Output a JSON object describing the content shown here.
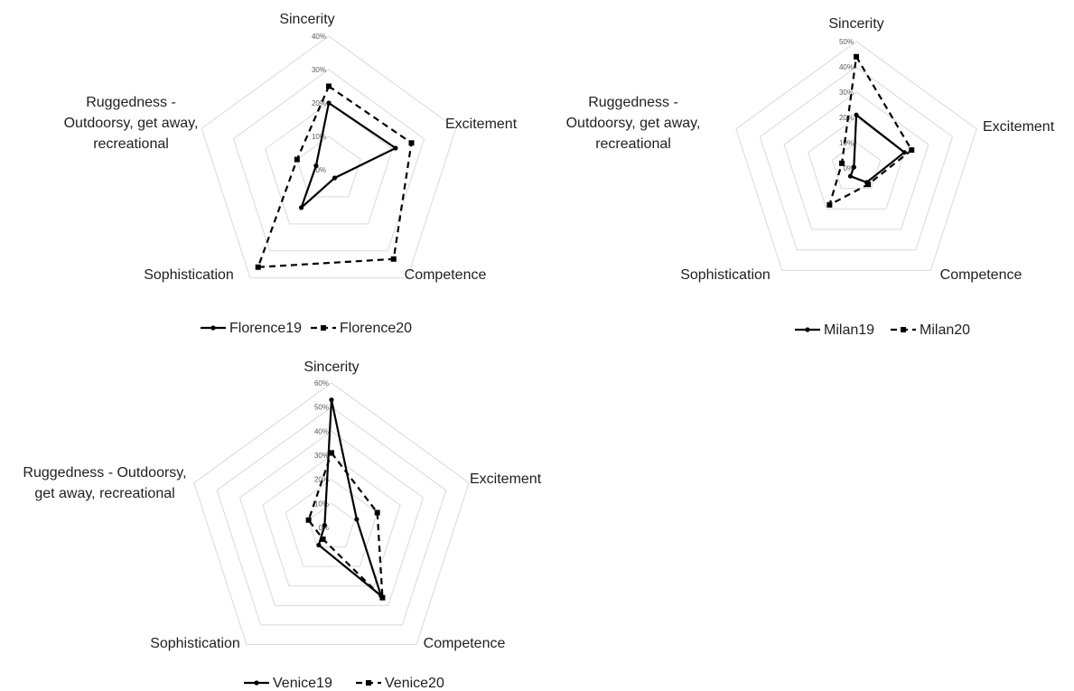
{
  "chart_data": [
    {
      "type": "radar",
      "axes": [
        "Sincerity",
        "Excitement",
        "Competence",
        "Sophistication",
        "Ruggedness - Outdoorsy, get away, recreational"
      ],
      "axis_label_lines": [
        [
          "Sincerity"
        ],
        [
          "Excitement"
        ],
        [
          "Competence"
        ],
        [
          "Sophistication"
        ],
        [
          "Ruggedness -",
          "Outdoorsy, get away,",
          "recreational"
        ]
      ],
      "ticks": [
        "0%",
        "10%",
        "20%",
        "30%",
        "40%"
      ],
      "rmax": 0.4,
      "series": [
        {
          "name": "Florence19",
          "style": "solid",
          "marker": "dot",
          "values": [
            0.2,
            0.21,
            0.03,
            0.14,
            0.04
          ]
        },
        {
          "name": "Florence20",
          "style": "dashed",
          "marker": "square",
          "values": [
            0.25,
            0.26,
            0.33,
            0.36,
            0.1
          ]
        }
      ],
      "legend_position": "bottom",
      "color": "#000000",
      "grid_color": "#d9d9d9"
    },
    {
      "type": "radar",
      "axes": [
        "Sincerity",
        "Excitement",
        "Competence",
        "Sophistication",
        "Ruggedness - Outdoorsy, get away, recreational"
      ],
      "axis_label_lines": [
        [
          "Sincerity"
        ],
        [
          "Excitement"
        ],
        [
          "Competence"
        ],
        [
          "Sophistication"
        ],
        [
          "Ruggedness -",
          "Outdoorsy, get away,",
          "recreational"
        ]
      ],
      "ticks": [
        "0%",
        "10%",
        "20%",
        "30%",
        "40%",
        "50%"
      ],
      "rmax": 0.5,
      "series": [
        {
          "name": "Milan19",
          "style": "solid",
          "marker": "dot",
          "values": [
            0.21,
            0.2,
            0.07,
            0.04,
            0.01
          ]
        },
        {
          "name": "Milan20",
          "style": "dashed",
          "marker": "square",
          "values": [
            0.44,
            0.23,
            0.08,
            0.18,
            0.06
          ]
        }
      ],
      "legend_position": "bottom",
      "color": "#000000",
      "grid_color": "#d9d9d9"
    },
    {
      "type": "radar",
      "axes": [
        "Sincerity",
        "Excitement",
        "Competence",
        "Sophistication",
        "Ruggedness - Outdoorsy, get away, recreational"
      ],
      "axis_label_lines": [
        [
          "Sincerity"
        ],
        [
          "Excitement"
        ],
        [
          "Competence"
        ],
        [
          "Sophistication"
        ],
        [
          "Ruggedness - Outdoorsy,",
          "get away, recreational"
        ]
      ],
      "ticks": [
        "0%",
        "10%",
        "20%",
        "30%",
        "40%",
        "50%",
        "60%"
      ],
      "rmax": 0.6,
      "series": [
        {
          "name": "Venice19",
          "style": "solid",
          "marker": "dot",
          "values": [
            0.53,
            0.11,
            0.35,
            0.09,
            0.03
          ]
        },
        {
          "name": "Venice20",
          "style": "dashed",
          "marker": "square",
          "values": [
            0.31,
            0.2,
            0.36,
            0.06,
            0.1
          ]
        }
      ],
      "legend_position": "bottom",
      "color": "#000000",
      "grid_color": "#d9d9d9"
    }
  ]
}
